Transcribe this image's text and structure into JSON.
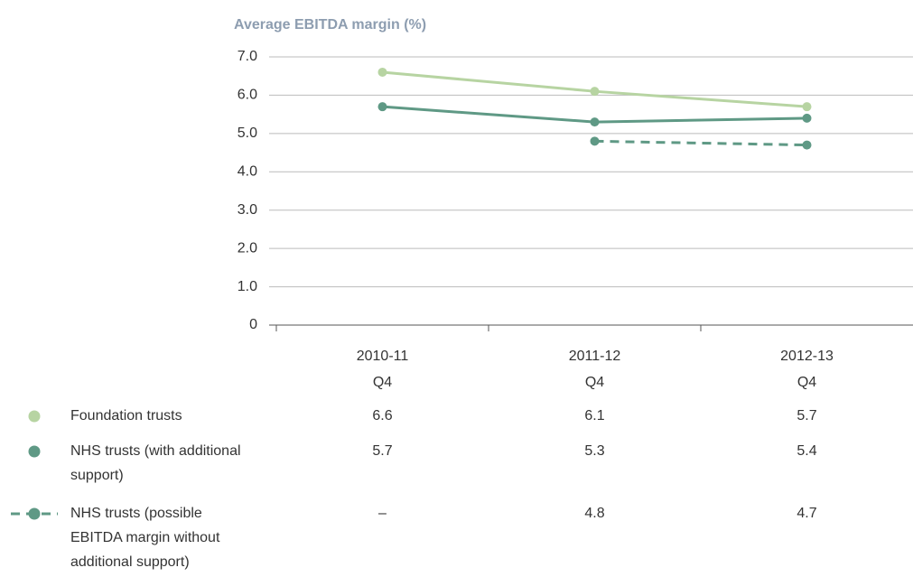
{
  "chart_data": {
    "type": "line",
    "title": "Average EBITDA margin (%)",
    "categories": [
      [
        "2010-11",
        "Q4"
      ],
      [
        "2011-12",
        "Q4"
      ],
      [
        "2012-13",
        "Q4"
      ]
    ],
    "series": [
      {
        "name": "Foundation trusts",
        "color": "#b7d4a2",
        "linestyle": "solid",
        "values": [
          6.6,
          6.1,
          5.7
        ]
      },
      {
        "name": "NHS trusts (with additional support)",
        "color": "#5f9985",
        "linestyle": "solid",
        "values": [
          5.7,
          5.3,
          5.4
        ]
      },
      {
        "name": "NHS trusts (possible EBITDA margin without additional support)",
        "color": "#5f9985",
        "linestyle": "dashed",
        "values": [
          null,
          4.8,
          4.7
        ],
        "value_labels": [
          "–",
          "4.8",
          "4.7"
        ]
      }
    ],
    "ylim": [
      0,
      7
    ],
    "yticks": [
      0,
      {
        "value": 1,
        "label": "1.0"
      },
      {
        "value": 2,
        "label": "2.0"
      },
      {
        "value": 3,
        "label": "3.0"
      },
      {
        "value": 4,
        "label": "4.0"
      },
      {
        "value": 5,
        "label": "5.0"
      },
      {
        "value": 6,
        "label": "6.0"
      },
      {
        "value": 7,
        "label": "7.0"
      }
    ],
    "grid": true
  }
}
